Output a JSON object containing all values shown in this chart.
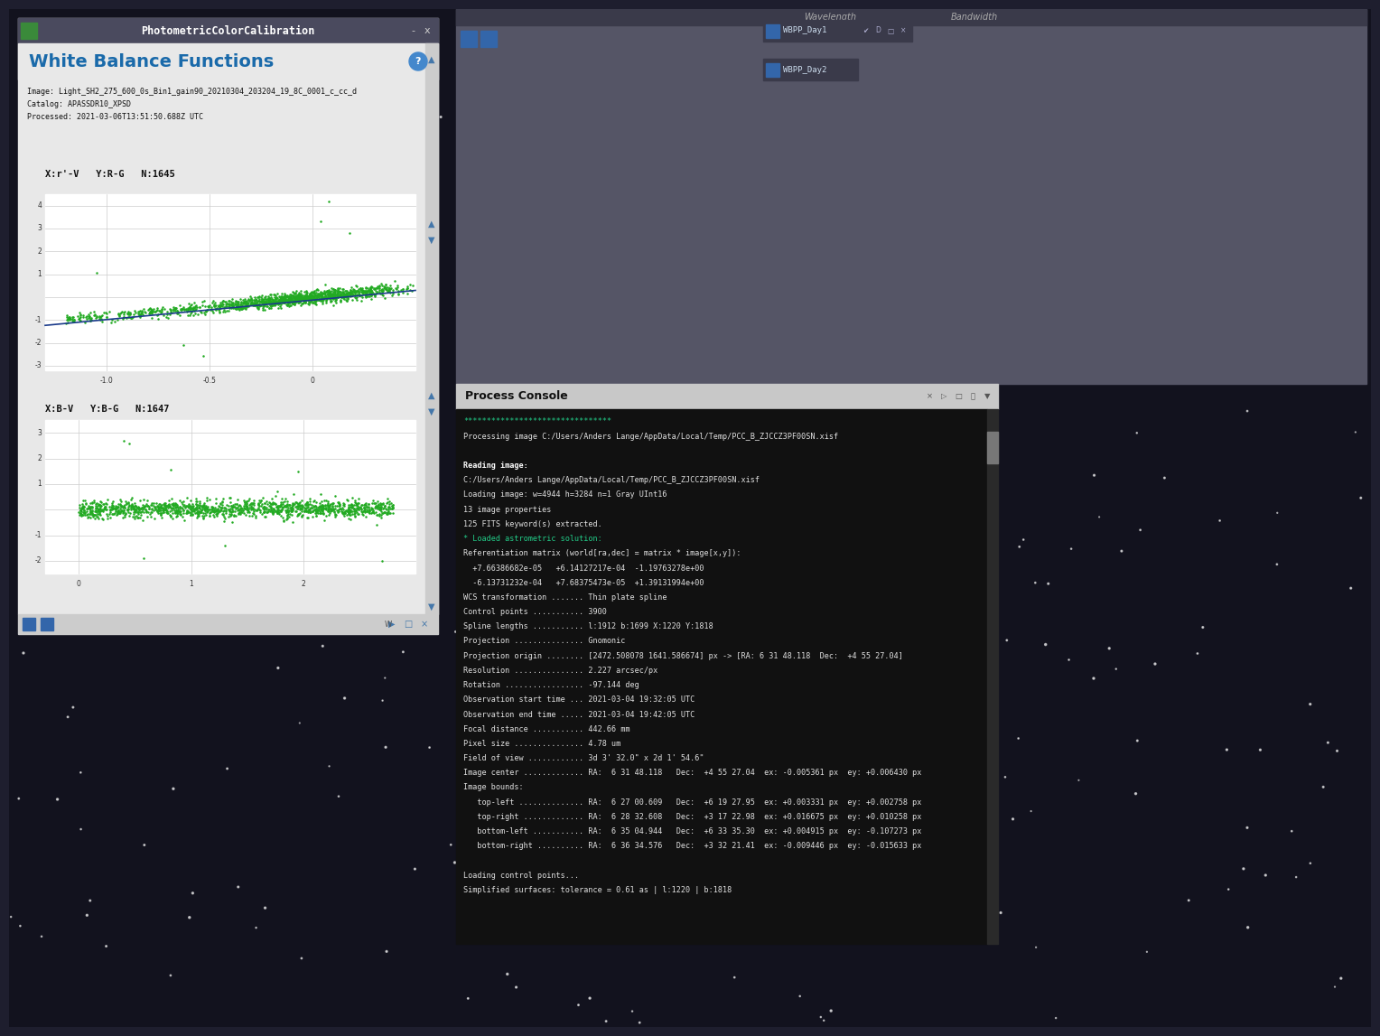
{
  "bg_color": "#1e1e2e",
  "title_bar_text": "PhotometricColorCalibration",
  "panel_header_color": "#1a6aaa",
  "panel_header_text": "White Balance Functions",
  "info_lines": [
    "Image: Light_SH2_275_600_0s_Bin1_gain90_20210304_203204_19_8C_0001_c_cc_d",
    "Catalog: APASSDR10_XPSD",
    "Processed: 2021-03-06T13:51:50.688Z UTC"
  ],
  "plot1_label": "X:r'-V   Y:R-G   N:1645",
  "plot1_xlim": [
    -1.3,
    0.5
  ],
  "plot1_ylim": [
    -3.2,
    4.5
  ],
  "plot2_label": "X:B-V   Y:B-G   N:1647",
  "plot2_xlim": [
    -0.3,
    3.0
  ],
  "plot2_ylim": [
    -2.5,
    3.5
  ],
  "dot_color": "#22aa22",
  "line_color": "#1a3a8a",
  "console_header_text": "Process Console",
  "console_text_color": "#e0e0e0",
  "console_lines": [
    "********************************",
    "Processing image C:/Users/Anders Lange/AppData/Local/Temp/PCC_B_ZJCCZ3PF00SN.xisf",
    "",
    "Reading image:",
    "C:/Users/Anders Lange/AppData/Local/Temp/PCC_B_ZJCCZ3PF00SN.xisf",
    "Loading image: w=4944 h=3284 n=1 Gray UInt16",
    "13 image properties",
    "125 FITS keyword(s) extracted.",
    "* Loaded astrometric solution:",
    "Referentiation matrix (world[ra,dec] = matrix * image[x,y]):",
    "  +7.66386682e-05   +6.14127217e-04  -1.19763278e+00",
    "  -6.13731232e-04   +7.68375473e-05  +1.39131994e+00",
    "WCS transformation ....... Thin plate spline",
    "Control points ........... 3900",
    "Spline lengths ........... l:1912 b:1699 X:1220 Y:1818",
    "Projection ............... Gnomonic",
    "Projection origin ........ [2472.508078 1641.586674] px -> [RA: 6 31 48.118  Dec:  +4 55 27.04]",
    "Resolution ............... 2.227 arcsec/px",
    "Rotation ................. -97.144 deg",
    "Observation start time ... 2021-03-04 19:32:05 UTC",
    "Observation end time ..... 2021-03-04 19:42:05 UTC",
    "Focal distance ........... 442.66 mm",
    "Pixel size ............... 4.78 um",
    "Field of view ............ 3d 3' 32.0\" x 2d 1' 54.6\"",
    "Image center ............. RA:  6 31 48.118   Dec:  +4 55 27.04  ex: -0.005361 px  ey: +0.006430 px",
    "Image bounds:",
    "   top-left .............. RA:  6 27 00.609   Dec:  +6 19 27.95  ex: +0.003331 px  ey: +0.002758 px",
    "   top-right ............. RA:  6 28 32.608   Dec:  +3 17 22.98  ex: +0.016675 px  ey: +0.010258 px",
    "   bottom-left ........... RA:  6 35 04.944   Dec:  +6 33 35.30  ex: +0.004915 px  ey: -0.107273 px",
    "   bottom-right .......... RA:  6 36 34.576   Dec:  +3 32 21.41  ex: -0.009446 px  ey: -0.015633 px",
    "",
    "Loading control points...",
    "Simplified surfaces: tolerance = 0.61 as | l:1220 | b:1818"
  ]
}
